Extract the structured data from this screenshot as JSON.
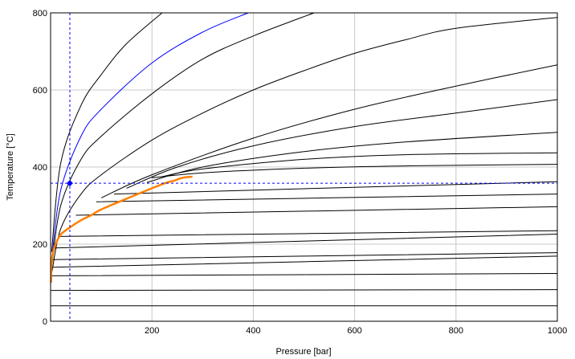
{
  "chart_data": {
    "type": "line",
    "xlabel": "Pressure [bar]",
    "ylabel": "Temperature [°C]",
    "xlim": [
      0,
      1000
    ],
    "ylim": [
      0,
      800
    ],
    "xticks": [
      200,
      400,
      600,
      800,
      1000
    ],
    "yticks": [
      0,
      200,
      400,
      600,
      800
    ],
    "grid": true,
    "colors": {
      "grid": "#c8c8c8",
      "isoline": "#000000",
      "highlight": "#0000ff",
      "saturation": "#ff8000",
      "crosshair": "#0000ff",
      "marker": "#0000ff"
    },
    "isolines": [
      {
        "kind": "low",
        "points": [
          [
            0,
            40
          ],
          [
            1000,
            40
          ]
        ]
      },
      {
        "kind": "low",
        "points": [
          [
            0,
            80
          ],
          [
            1000,
            82
          ]
        ]
      },
      {
        "kind": "low",
        "points": [
          [
            0,
            118
          ],
          [
            1000,
            124
          ]
        ]
      },
      {
        "kind": "low",
        "points": [
          [
            2,
            140
          ],
          [
            1000,
            169
          ]
        ]
      },
      {
        "kind": "low",
        "points": [
          [
            3,
            160
          ],
          [
            1000,
            178
          ]
        ]
      },
      {
        "kind": "low",
        "points": [
          [
            8,
            190
          ],
          [
            1000,
            226
          ]
        ]
      },
      {
        "kind": "low",
        "points": [
          [
            17,
            220
          ],
          [
            1000,
            235
          ]
        ]
      },
      {
        "kind": "low",
        "points": [
          [
            50,
            275
          ],
          [
            1000,
            297
          ]
        ]
      },
      {
        "kind": "low",
        "points": [
          [
            90,
            310
          ],
          [
            1000,
            330
          ]
        ]
      },
      {
        "kind": "low",
        "points": [
          [
            125,
            330
          ],
          [
            1000,
            362
          ]
        ]
      },
      {
        "kind": "high",
        "points": [
          [
            200,
            372
          ],
          [
            300,
            385
          ],
          [
            500,
            397
          ],
          [
            700,
            403
          ],
          [
            1000,
            407
          ]
        ]
      },
      {
        "kind": "high",
        "points": [
          [
            220,
            375
          ],
          [
            300,
            395
          ],
          [
            500,
            420
          ],
          [
            700,
            432
          ],
          [
            1000,
            437
          ]
        ]
      },
      {
        "kind": "high",
        "points": [
          [
            190,
            360
          ],
          [
            300,
            400
          ],
          [
            500,
            440
          ],
          [
            700,
            465
          ],
          [
            1000,
            490
          ]
        ]
      },
      {
        "kind": "high",
        "points": [
          [
            150,
            345
          ],
          [
            250,
            400
          ],
          [
            400,
            455
          ],
          [
            600,
            505
          ],
          [
            800,
            540
          ],
          [
            1000,
            575
          ]
        ]
      },
      {
        "kind": "high",
        "points": [
          [
            100,
            320
          ],
          [
            200,
            380
          ],
          [
            400,
            475
          ],
          [
            600,
            550
          ],
          [
            800,
            610
          ],
          [
            1000,
            665
          ]
        ]
      },
      {
        "kind": "high",
        "points": [
          [
            3,
            130
          ],
          [
            20,
            240
          ],
          [
            60,
            330
          ],
          [
            100,
            380
          ],
          [
            200,
            470
          ],
          [
            300,
            540
          ],
          [
            400,
            600
          ],
          [
            500,
            650
          ],
          [
            600,
            695
          ],
          [
            700,
            730
          ],
          [
            800,
            760
          ],
          [
            1000,
            788
          ]
        ]
      },
      {
        "kind": "high",
        "points": [
          [
            3,
            150
          ],
          [
            20,
            300
          ],
          [
            60,
            420
          ],
          [
            100,
            480
          ],
          [
            200,
            590
          ],
          [
            300,
            680
          ],
          [
            400,
            740
          ],
          [
            520,
            800
          ]
        ]
      },
      {
        "kind": "blue",
        "points": [
          [
            3,
            170
          ],
          [
            20,
            340
          ],
          [
            60,
            480
          ],
          [
            100,
            550
          ],
          [
            200,
            670
          ],
          [
            300,
            750
          ],
          [
            390,
            800
          ]
        ]
      },
      {
        "kind": "high",
        "points": [
          [
            2,
            180
          ],
          [
            20,
            410
          ],
          [
            60,
            560
          ],
          [
            100,
            640
          ],
          [
            150,
            720
          ],
          [
            220,
            800
          ]
        ]
      }
    ],
    "saturation_curve": [
      [
        1,
        100
      ],
      [
        2,
        150
      ],
      [
        5,
        180
      ],
      [
        10,
        200
      ],
      [
        20,
        225
      ],
      [
        40,
        245
      ],
      [
        60,
        262
      ],
      [
        80,
        275
      ],
      [
        100,
        290
      ],
      [
        150,
        318
      ],
      [
        200,
        345
      ],
      [
        230,
        360
      ],
      [
        245,
        365
      ],
      [
        260,
        372
      ],
      [
        280,
        375
      ]
    ],
    "selected_point": {
      "x": 38,
      "y": 358
    }
  }
}
